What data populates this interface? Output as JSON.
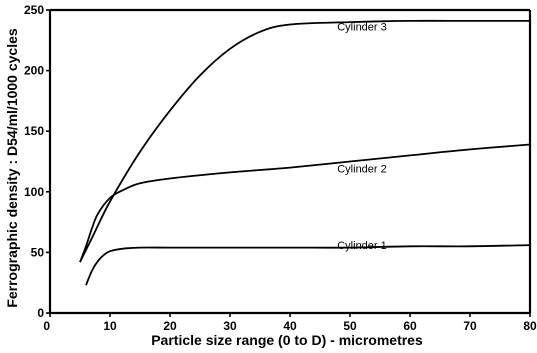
{
  "chart_data": {
    "type": "line",
    "title": "",
    "xlabel": "Particle size range (0 to D) - micrometres",
    "ylabel": "Ferrographic density : D54/ml/1000 cycles",
    "xlim": [
      0,
      80
    ],
    "ylim": [
      0,
      250
    ],
    "x_ticks": [
      0,
      10,
      20,
      30,
      40,
      50,
      60,
      70,
      80
    ],
    "y_ticks": [
      0,
      50,
      100,
      150,
      200,
      250
    ],
    "x_tick_labels": [
      "0",
      "10",
      "20",
      "30",
      "40",
      "50",
      "60",
      "70",
      "80"
    ],
    "y_tick_labels": [
      "0",
      "50",
      "100",
      "150",
      "200",
      "250"
    ],
    "grid": false,
    "series": [
      {
        "name": "Cylinder 1",
        "label_at": [
          52,
          53
        ],
        "points": [
          [
            6,
            23
          ],
          [
            7,
            35
          ],
          [
            8,
            43
          ],
          [
            9,
            48
          ],
          [
            10,
            51
          ],
          [
            12,
            53
          ],
          [
            15,
            54
          ],
          [
            20,
            54
          ],
          [
            30,
            54
          ],
          [
            40,
            54
          ],
          [
            50,
            54
          ],
          [
            60,
            55
          ],
          [
            70,
            55
          ],
          [
            80,
            56
          ]
        ]
      },
      {
        "name": "Cylinder 2",
        "label_at": [
          52,
          116
        ],
        "points": [
          [
            5,
            42
          ],
          [
            6,
            55
          ],
          [
            7,
            70
          ],
          [
            8,
            82
          ],
          [
            10,
            95
          ],
          [
            12,
            101
          ],
          [
            15,
            107
          ],
          [
            20,
            111
          ],
          [
            30,
            116
          ],
          [
            40,
            120
          ],
          [
            50,
            125
          ],
          [
            60,
            130
          ],
          [
            70,
            135
          ],
          [
            80,
            139
          ]
        ]
      },
      {
        "name": "Cylinder 3",
        "label_at": [
          52,
          233
        ],
        "points": [
          [
            5,
            42
          ],
          [
            7,
            62
          ],
          [
            10,
            92
          ],
          [
            15,
            133
          ],
          [
            20,
            167
          ],
          [
            25,
            196
          ],
          [
            30,
            218
          ],
          [
            35,
            232
          ],
          [
            40,
            238
          ],
          [
            50,
            240
          ],
          [
            60,
            241
          ],
          [
            70,
            241
          ],
          [
            80,
            241
          ]
        ]
      }
    ]
  }
}
